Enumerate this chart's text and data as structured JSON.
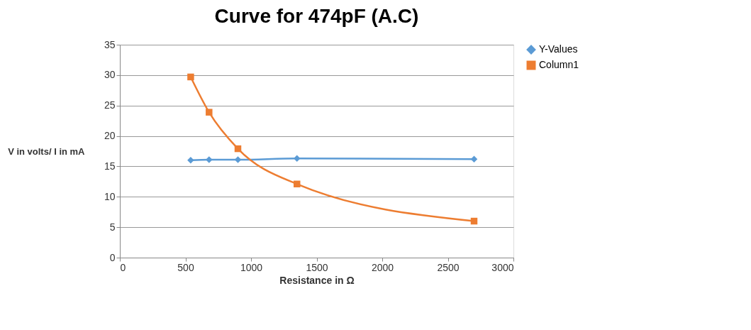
{
  "chart_data": {
    "type": "line",
    "title": "Curve for 474pF (A.C)",
    "xlabel": "Resistance in Ω",
    "ylabel": "V in volts/ I in mA",
    "x": [
      540,
      680,
      900,
      1350,
      2700
    ],
    "series": [
      {
        "name": "Y-Values",
        "color": "#5b9bd5",
        "marker": "diamond",
        "values": [
          16.0,
          16.1,
          16.1,
          16.3,
          16.2
        ]
      },
      {
        "name": "Column1",
        "color": "#ed7d31",
        "marker": "square",
        "values": [
          29.7,
          23.9,
          17.9,
          12.1,
          6.0
        ]
      }
    ],
    "xlim": [
      0,
      3000
    ],
    "xticks": [
      0,
      500,
      1000,
      1500,
      2000,
      2500,
      3000
    ],
    "ylim": [
      0,
      35
    ],
    "yticks": [
      0,
      5,
      10,
      15,
      20,
      25,
      30,
      35
    ],
    "grid": "y",
    "legend": "right",
    "line_style": "solid"
  }
}
